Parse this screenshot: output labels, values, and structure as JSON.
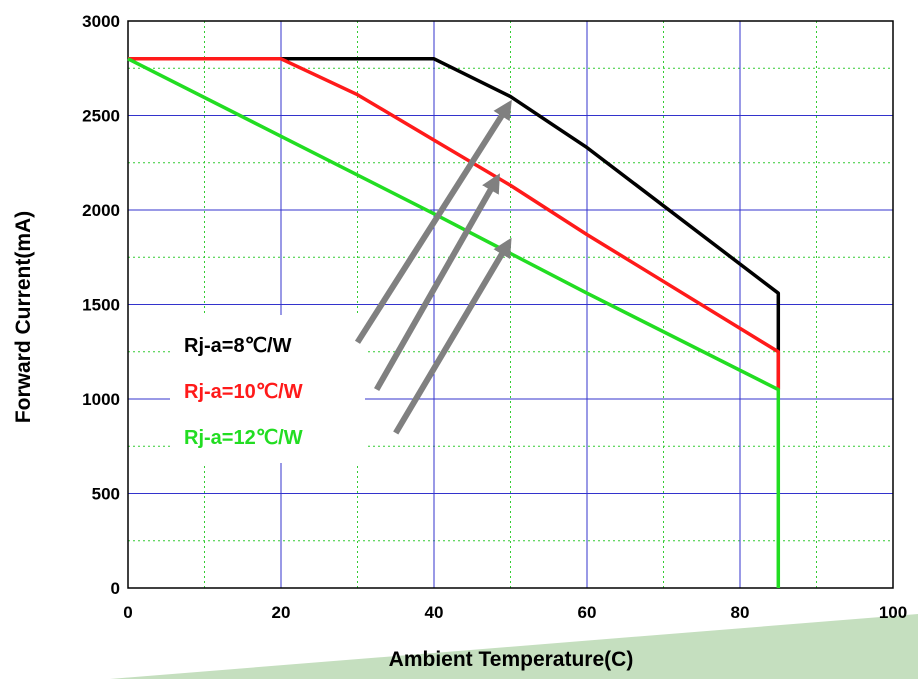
{
  "chart_data": {
    "type": "line",
    "xlabel": "Ambient Temperature(C)",
    "ylabel": "Forward Current(mA)",
    "xlim": [
      0,
      100
    ],
    "ylim": [
      0,
      3000
    ],
    "x_ticks": [
      0,
      20,
      40,
      60,
      80,
      100
    ],
    "y_ticks": [
      0,
      500,
      1000,
      1500,
      2000,
      2500,
      3000
    ],
    "x_tick_labels": [
      "0",
      "20",
      "40",
      "60",
      "80",
      "100"
    ],
    "y_tick_labels": [
      "0",
      "500",
      "1000",
      "1500",
      "2000",
      "2500",
      "3000"
    ],
    "grid": {
      "major": true,
      "minor": true,
      "major_color": "#3333cc",
      "minor_color": "#33cc33"
    },
    "legend_position": "left",
    "series": [
      {
        "name": "Rj-a=8℃/W",
        "color": "#000000",
        "x": [
          0,
          40,
          50,
          60,
          85,
          85
        ],
        "y": [
          2800,
          2800,
          2600,
          2330,
          1560,
          1050
        ]
      },
      {
        "name": "Rj-a=10℃/W",
        "color": "#ff1a1a",
        "x": [
          0,
          20,
          30,
          40,
          50,
          60,
          85,
          85
        ],
        "y": [
          2800,
          2800,
          2610,
          2370,
          2130,
          1870,
          1250,
          1050
        ]
      },
      {
        "name": "Rj-a=12℃/W",
        "color": "#22dd22",
        "x": [
          0,
          20,
          40,
          60,
          85,
          85
        ],
        "y": [
          2800,
          2390,
          1980,
          1560,
          1050,
          0
        ]
      }
    ],
    "annotations": [
      {
        "type": "arrow",
        "color": "#808080",
        "from": [
          30,
          1300
        ],
        "to": [
          49.5,
          2540
        ]
      },
      {
        "type": "arrow",
        "color": "#808080",
        "from": [
          32.5,
          1050
        ],
        "to": [
          48,
          2150
        ]
      },
      {
        "type": "arrow",
        "color": "#808080",
        "from": [
          35,
          820
        ],
        "to": [
          49.5,
          1810
        ]
      }
    ]
  }
}
